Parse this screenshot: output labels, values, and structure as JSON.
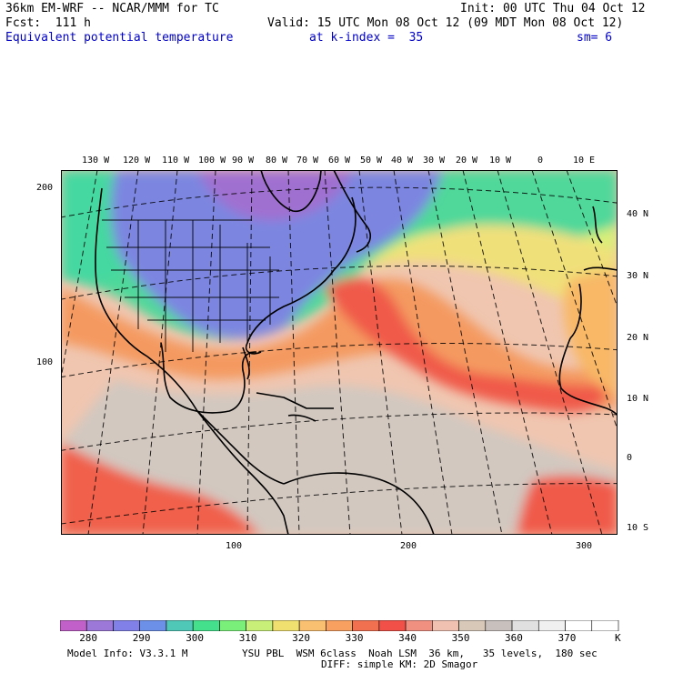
{
  "header": {
    "line1_left": "36km EM-WRF -- NCAR/MMM for TC",
    "line1_right": "Init: 00 UTC Thu 04 Oct 12",
    "line2_left": "Fcst:  111 h",
    "line2_right": "Valid: 15 UTC Mon 08 Oct 12 (09 MDT Mon 08 Oct 12)",
    "line3_field": "Equivalent potential temperature",
    "line3_level": "at k-index =  35",
    "line3_sm": "sm= 6"
  },
  "map": {
    "lon_labels": [
      "130 W",
      "120 W",
      "110 W",
      "100 W",
      "90 W",
      "80 W",
      "70 W",
      "60 W",
      "50 W",
      "40 W",
      "30 W",
      "20 W",
      "10 W",
      "0",
      "10 E"
    ],
    "lat_labels": [
      "40 N",
      "30 N",
      "20 N",
      "10 N",
      "0",
      "10 S"
    ],
    "left_ticks": [
      "200",
      "100"
    ],
    "bottom_ticks": [
      "100",
      "200",
      "300"
    ]
  },
  "colorbar": {
    "colors": [
      "#c060c8",
      "#9c78d8",
      "#8080e8",
      "#6c90e8",
      "#50c8b8",
      "#44e08c",
      "#7af07a",
      "#c8f078",
      "#f0e070",
      "#f8c070",
      "#f8a060",
      "#f07050",
      "#f05048",
      "#f09080",
      "#f0c0b0",
      "#d8c8b8",
      "#c8c0bc",
      "#e0e0e0",
      "#f0f0f0",
      "#ffffff",
      "#ffffff"
    ],
    "labels": [
      "280",
      "290",
      "300",
      "310",
      "320",
      "330",
      "340",
      "350",
      "360",
      "370"
    ],
    "unit": "K"
  },
  "footer": {
    "model_info": "Model Info: V3.3.1 M",
    "physics": "YSU PBL  WSM 6class  Noah LSM  36 km,   35 levels,  180 sec",
    "diffusion": "DIFF: simple KM: 2D Smagor"
  }
}
